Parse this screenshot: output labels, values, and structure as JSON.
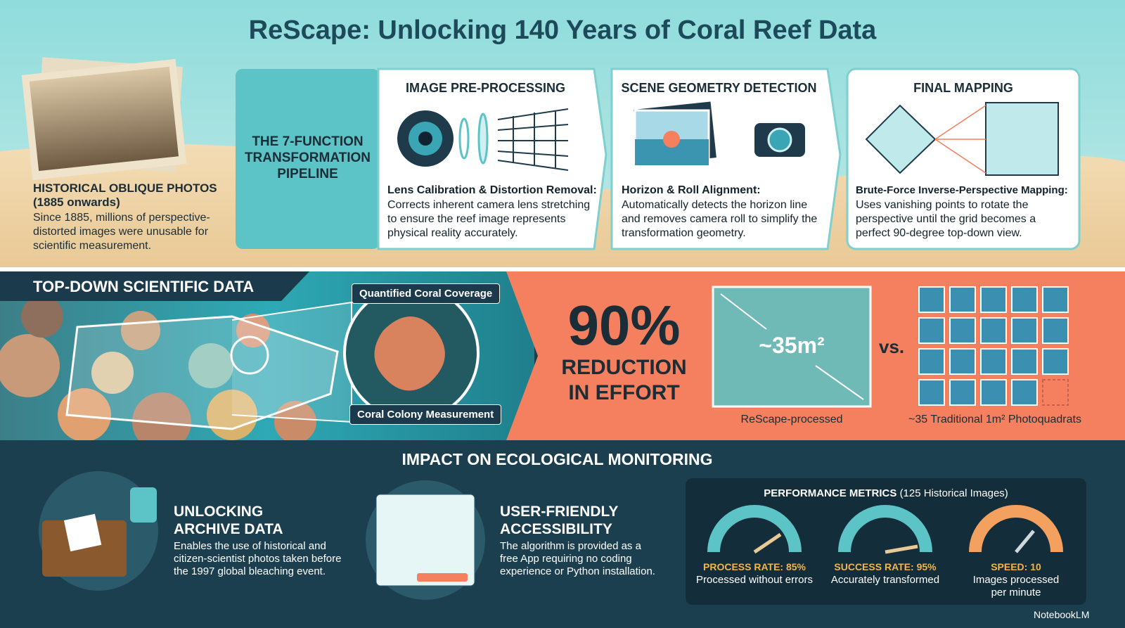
{
  "header": {
    "title": "ReScape: Unlocking 140 Years of Coral Reef Data"
  },
  "intro": {
    "heading": "HISTORICAL OBLIQUE PHOTOS (1885 onwards)",
    "text": "Since 1885, millions of perspective-distorted images were unusable for scientific measurement."
  },
  "pipeline": {
    "label": "THE 7-FUNCTION TRANSFORMATION PIPELINE",
    "steps": [
      {
        "title": "IMAGE PRE-PROCESSING",
        "subtitle": "Lens Calibration & Distortion Removal:",
        "text": "Corrects inherent camera lens stretching to ensure the reef image represents physical reality accurately."
      },
      {
        "title": "SCENE GEOMETRY DETECTION",
        "subtitle": "Horizon & Roll Alignment:",
        "text": "Automatically detects the horizon line and removes camera roll to simplify the transformation geometry."
      },
      {
        "title": "FINAL MAPPING",
        "subtitle": "Brute-Force Inverse-Perspective Mapping:",
        "text": "Uses vanishing points to rotate the perspective until the grid becomes a perfect 90-degree top-down view."
      }
    ]
  },
  "topdown": {
    "banner": "TOP-DOWN SCIENTIFIC DATA",
    "callouts": [
      "Quantified Coral Coverage",
      "Coral Colony Measurement"
    ]
  },
  "reduction": {
    "figure": "90%",
    "text": "REDUCTION IN EFFORT",
    "area": "~35m²",
    "vs": "vs.",
    "captions": [
      "ReScape-processed",
      "~35 Traditional 1m² Photoquadrats"
    ]
  },
  "impact": {
    "title": "IMPACT ON ECOLOGICAL MONITORING",
    "items": [
      {
        "title": "UNLOCKING ARCHIVE DATA",
        "text": "Enables the use of historical and citizen-scientist photos taken before the 1997 global bleaching event."
      },
      {
        "title": "USER-FRIENDLY ACCESSIBILITY",
        "text": "The algorithm is provided as a free App requiring no coding experience or Python installation."
      }
    ]
  },
  "metrics": {
    "title": "PERFORMANCE METRICS",
    "subtitle": "(125 Historical Images)",
    "items": [
      {
        "label": "PROCESS RATE: 85%",
        "text": "Processed without errors"
      },
      {
        "label": "SUCCESS RATE: 95%",
        "text": "Accurately transformed"
      },
      {
        "label": "SPEED: 10",
        "text": "Images processed per minute"
      }
    ]
  },
  "footer": {
    "brand": "NotebookLM"
  }
}
